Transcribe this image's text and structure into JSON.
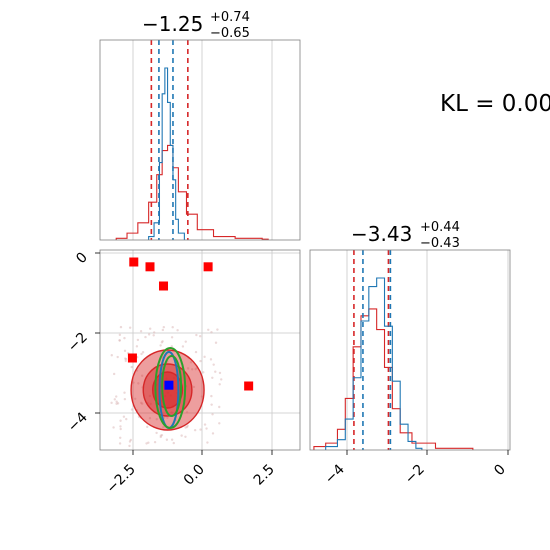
{
  "chart_data": [
    {
      "type": "histogram",
      "panel": "top-left",
      "title": {
        "value": "−1.25",
        "plus": "+0.74",
        "minus": "−0.65"
      },
      "xlim": [
        -3.8,
        3.6
      ],
      "series": [
        {
          "name": "",
          "color": "#1f77b4",
          "bins": [
            [
              -2.0,
              0.02
            ],
            [
              -1.8,
              0.1
            ],
            [
              -1.6,
              0.45
            ],
            [
              -1.5,
              0.85
            ],
            [
              -1.4,
              1.0
            ],
            [
              -1.3,
              0.8
            ],
            [
              -1.2,
              0.55
            ],
            [
              -1.1,
              0.35
            ],
            [
              -1.0,
              0.12
            ],
            [
              -0.9,
              0.04
            ]
          ],
          "quantiles": [
            -1.62,
            -1.1
          ]
        },
        {
          "name": "",
          "color": "#d62728",
          "bins": [
            [
              -3.2,
              0.01
            ],
            [
              -2.8,
              0.04
            ],
            [
              -2.4,
              0.1
            ],
            [
              -2.0,
              0.22
            ],
            [
              -1.7,
              0.38
            ],
            [
              -1.5,
              0.52
            ],
            [
              -1.3,
              0.55
            ],
            [
              -1.1,
              0.42
            ],
            [
              -0.9,
              0.28
            ],
            [
              -0.6,
              0.15
            ],
            [
              -0.2,
              0.06
            ],
            [
              0.4,
              0.02
            ],
            [
              1.2,
              0.01
            ],
            [
              2.2,
              0.005
            ]
          ],
          "quantiles": [
            -1.9,
            -0.55
          ]
        }
      ]
    },
    {
      "type": "histogram",
      "panel": "bottom-right",
      "title": {
        "value": "−3.43",
        "plus": "+0.44",
        "minus": "−0.43"
      },
      "xlim": [
        -5.0,
        0.1
      ],
      "xticks": [
        "−4",
        "−2",
        "0"
      ],
      "series": [
        {
          "name": "",
          "color": "#1f77b4",
          "bins": [
            [
              -4.6,
              0.02
            ],
            [
              -4.3,
              0.06
            ],
            [
              -4.1,
              0.18
            ],
            [
              -3.9,
              0.42
            ],
            [
              -3.7,
              0.75
            ],
            [
              -3.5,
              0.95
            ],
            [
              -3.3,
              1.0
            ],
            [
              -3.1,
              0.72
            ],
            [
              -2.9,
              0.4
            ],
            [
              -2.7,
              0.15
            ],
            [
              -2.5,
              0.05
            ],
            [
              -2.3,
              0.01
            ]
          ],
          "quantiles": [
            -3.65,
            -2.95
          ]
        },
        {
          "name": "",
          "color": "#d62728",
          "bins": [
            [
              -4.9,
              0.02
            ],
            [
              -4.6,
              0.04
            ],
            [
              -4.3,
              0.12
            ],
            [
              -4.1,
              0.3
            ],
            [
              -3.9,
              0.6
            ],
            [
              -3.7,
              0.78
            ],
            [
              -3.5,
              0.82
            ],
            [
              -3.3,
              0.7
            ],
            [
              -3.1,
              0.48
            ],
            [
              -2.9,
              0.24
            ],
            [
              -2.7,
              0.1
            ],
            [
              -2.4,
              0.04
            ],
            [
              -1.8,
              0.01
            ],
            [
              -1.0,
              0.01
            ]
          ],
          "quantiles": [
            -3.88,
            -3.0
          ]
        }
      ]
    },
    {
      "type": "scatter",
      "panel": "bottom-left",
      "xlim": [
        -3.8,
        3.6
      ],
      "ylim": [
        -4.9,
        0.1
      ],
      "xticks": [
        "−2.5",
        "0.0",
        "2.5"
      ],
      "yticks": [
        "0",
        "−2",
        "−4"
      ],
      "red_markers": [
        [
          -2.55,
          -0.2
        ],
        [
          -1.95,
          -0.32
        ],
        [
          -1.45,
          -0.8
        ],
        [
          0.2,
          -0.32
        ],
        [
          -2.6,
          -2.6
        ],
        [
          1.7,
          -3.3
        ]
      ],
      "blue_marker": [
        -1.25,
        -3.28
      ],
      "contours": [
        {
          "color": "#d62728",
          "cx": -1.3,
          "cy": -3.4,
          "rx": 1.35,
          "ry": 1.0,
          "alpha": 0.45
        },
        {
          "color": "#d62728",
          "cx": -1.3,
          "cy": -3.4,
          "rx": 0.9,
          "ry": 0.65,
          "alpha": 0.5
        },
        {
          "color": "#d62728",
          "cx": -1.3,
          "cy": -3.4,
          "rx": 0.55,
          "ry": 0.45,
          "alpha": 0.6
        },
        {
          "color": "#1f77b4",
          "cx": -1.25,
          "cy": -3.4,
          "rx": 0.35,
          "ry": 0.95,
          "alpha": 0.0
        },
        {
          "color": "#2ca02c",
          "cx": -1.15,
          "cy": -3.3,
          "rx": 0.35,
          "ry": 0.75,
          "alpha": 0.0
        },
        {
          "color": "#2ca02c",
          "cx": -1.2,
          "cy": -3.35,
          "rx": 0.55,
          "ry": 1.0,
          "alpha": 0.0
        }
      ]
    }
  ],
  "annotation": "KL = 0.00"
}
